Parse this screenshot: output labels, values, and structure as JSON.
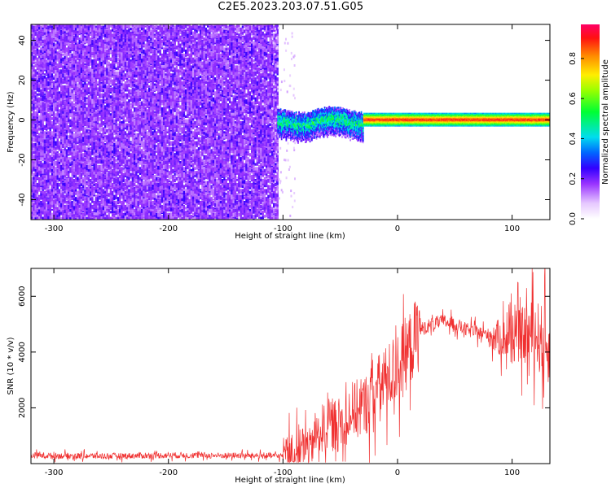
{
  "title": "C2E5.2023.203.07.51.G05",
  "chart_data": [
    {
      "type": "heatmap",
      "xlabel": "Height of straight line (km)",
      "ylabel": "Frequency (Hz)",
      "xlim": [
        -320,
        133
      ],
      "ylim": [
        -50,
        48
      ],
      "xticks": [
        -300,
        -200,
        -100,
        0,
        100
      ],
      "yticks": [
        -40,
        -20,
        0,
        20,
        40
      ],
      "colorbar": {
        "label": "Normalized spectral amplitude",
        "range": [
          0.0,
          0.97
        ],
        "ticks": [
          "0.0",
          "0.2",
          "0.4",
          "0.6",
          "0.8"
        ],
        "tick_values": [
          0.0,
          0.2,
          0.4,
          0.6,
          0.8
        ]
      },
      "features": [
        {
          "region": "noise",
          "x_range": [
            -320,
            -105
          ],
          "freq_range": [
            -50,
            48
          ],
          "amplitude": "0.0-0.2"
        },
        {
          "region": "transition",
          "x_range": [
            -105,
            -30
          ],
          "freq_range": [
            -8,
            5
          ],
          "amplitude": "0.2-0.6"
        },
        {
          "region": "carrier",
          "x_range": [
            -30,
            133
          ],
          "freq_center": 0,
          "amplitude": "0.7-0.97"
        }
      ]
    },
    {
      "type": "line",
      "xlabel": "Height of straight line (km)",
      "ylabel": "SNR (10 * v/v)",
      "xlim": [
        -320,
        133
      ],
      "ylim": [
        0,
        7000
      ],
      "xticks": [
        -300,
        -200,
        -100,
        0,
        100
      ],
      "yticks": [
        2000,
        4000,
        6000
      ],
      "color": "#f03030",
      "x": [
        -320,
        -300,
        -250,
        -200,
        -150,
        -110,
        -100,
        -90,
        -80,
        -70,
        -60,
        -50,
        -40,
        -30,
        -20,
        -10,
        0,
        10,
        20,
        30,
        40,
        50,
        60,
        70,
        80,
        90,
        100,
        110,
        120,
        130
      ],
      "values": [
        300,
        280,
        270,
        300,
        290,
        280,
        270,
        300,
        600,
        1100,
        1400,
        1400,
        1900,
        2000,
        2600,
        3000,
        3500,
        4100,
        4800,
        5000,
        5100,
        5000,
        4800,
        4700,
        4600,
        4500,
        4500,
        4600,
        4700,
        4200
      ]
    }
  ]
}
